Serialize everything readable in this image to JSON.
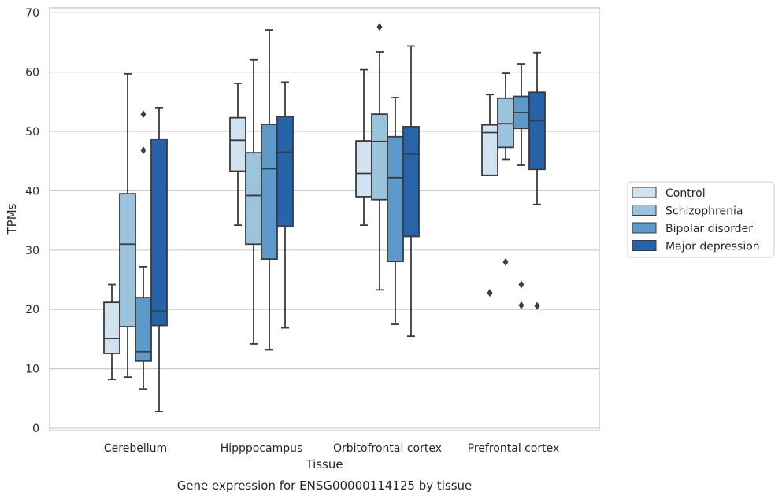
{
  "caption": "Gene expression for ENSG00000114125 by tissue",
  "chart_data": {
    "type": "box",
    "xlabel": "Tissue",
    "ylabel": "TPMs",
    "ylim": [
      0,
      70
    ],
    "yticks": [
      0,
      10,
      20,
      30,
      40,
      50,
      60,
      70
    ],
    "grid": "horizontal",
    "legend_position": "right",
    "categories": [
      "Cerebellum",
      "Hipppocampus",
      "Orbitofrontal cortex",
      "Prefrontal cortex"
    ],
    "series": [
      {
        "name": "Control",
        "color": "#d1e2f1",
        "boxes": [
          {
            "whisker_low": 8.2,
            "q1": 12.6,
            "median": 15.1,
            "q3": 21.2,
            "whisker_high": 24.2,
            "outliers": []
          },
          {
            "whisker_low": 34.2,
            "q1": 43.3,
            "median": 48.5,
            "q3": 52.3,
            "whisker_high": 58.1,
            "outliers": []
          },
          {
            "whisker_low": 34.2,
            "q1": 39.0,
            "median": 42.9,
            "q3": 48.4,
            "whisker_high": 60.4,
            "outliers": []
          },
          {
            "whisker_low": 42.6,
            "q1": 42.6,
            "median": 49.8,
            "q3": 51.1,
            "whisker_high": 56.2,
            "outliers": [
              22.8
            ]
          }
        ]
      },
      {
        "name": "Schizophrenia",
        "color": "#9ac3dd",
        "boxes": [
          {
            "whisker_low": 8.6,
            "q1": 17.1,
            "median": 31.0,
            "q3": 39.5,
            "whisker_high": 59.7,
            "outliers": []
          },
          {
            "whisker_low": 14.2,
            "q1": 31.0,
            "median": 39.2,
            "q3": 46.4,
            "whisker_high": 62.1,
            "outliers": []
          },
          {
            "whisker_low": 23.3,
            "q1": 38.5,
            "median": 48.3,
            "q3": 52.9,
            "whisker_high": 63.4,
            "outliers": [
              67.6
            ]
          },
          {
            "whisker_low": 45.3,
            "q1": 47.3,
            "median": 51.3,
            "q3": 55.6,
            "whisker_high": 59.8,
            "outliers": [
              28.0
            ]
          }
        ]
      },
      {
        "name": "Bipolar disorder",
        "color": "#5b9ac9",
        "boxes": [
          {
            "whisker_low": 6.6,
            "q1": 11.3,
            "median": 12.9,
            "q3": 22.0,
            "whisker_high": 27.2,
            "outliers": [
              46.8,
              52.9
            ]
          },
          {
            "whisker_low": 13.2,
            "q1": 28.5,
            "median": 43.7,
            "q3": 51.2,
            "whisker_high": 67.1,
            "outliers": []
          },
          {
            "whisker_low": 17.5,
            "q1": 28.1,
            "median": 42.2,
            "q3": 49.1,
            "whisker_high": 55.7,
            "outliers": []
          },
          {
            "whisker_low": 44.3,
            "q1": 50.5,
            "median": 53.2,
            "q3": 55.9,
            "whisker_high": 61.4,
            "outliers": [
              24.2,
              20.7
            ]
          }
        ]
      },
      {
        "name": "Major depression",
        "color": "#2663a8",
        "boxes": [
          {
            "whisker_low": 2.8,
            "q1": 17.3,
            "median": 19.7,
            "q3": 48.7,
            "whisker_high": 54.0,
            "outliers": []
          },
          {
            "whisker_low": 16.9,
            "q1": 34.0,
            "median": 46.5,
            "q3": 52.5,
            "whisker_high": 58.3,
            "outliers": []
          },
          {
            "whisker_low": 15.5,
            "q1": 32.3,
            "median": 46.2,
            "q3": 50.8,
            "whisker_high": 64.4,
            "outliers": []
          },
          {
            "whisker_low": 37.7,
            "q1": 43.6,
            "median": 51.8,
            "q3": 56.6,
            "whisker_high": 63.3,
            "outliers": [
              20.6
            ]
          }
        ]
      }
    ]
  }
}
